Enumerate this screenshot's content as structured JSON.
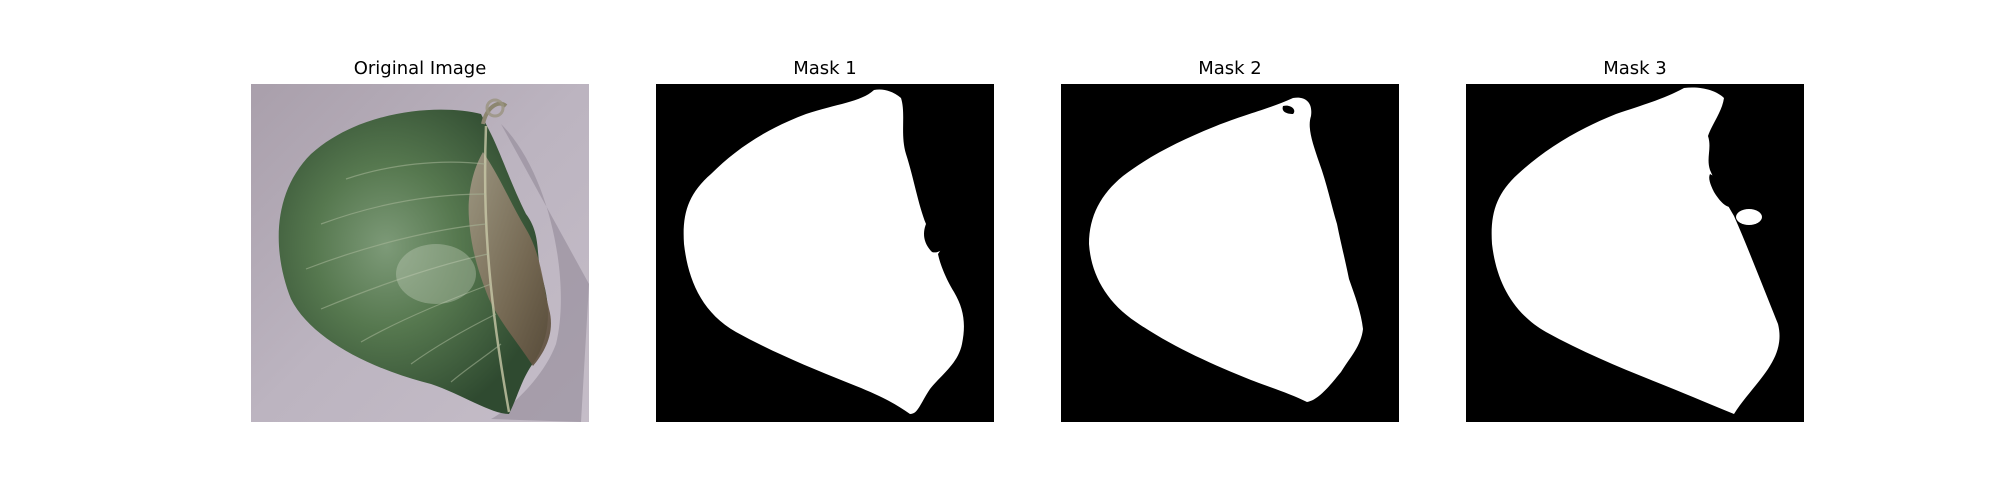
{
  "panels": [
    {
      "title": "Original Image"
    },
    {
      "title": "Mask 1"
    },
    {
      "title": "Mask 2"
    },
    {
      "title": "Mask 3"
    }
  ],
  "colors": {
    "background": "#ffffff",
    "mask_foreground": "#ffffff",
    "mask_background": "#000000",
    "leaf_green": "#4f7a4c",
    "leaf_dark": "#2f4a30",
    "lesion_brown": "#8a7a66",
    "surface": "#b9b0bd"
  }
}
